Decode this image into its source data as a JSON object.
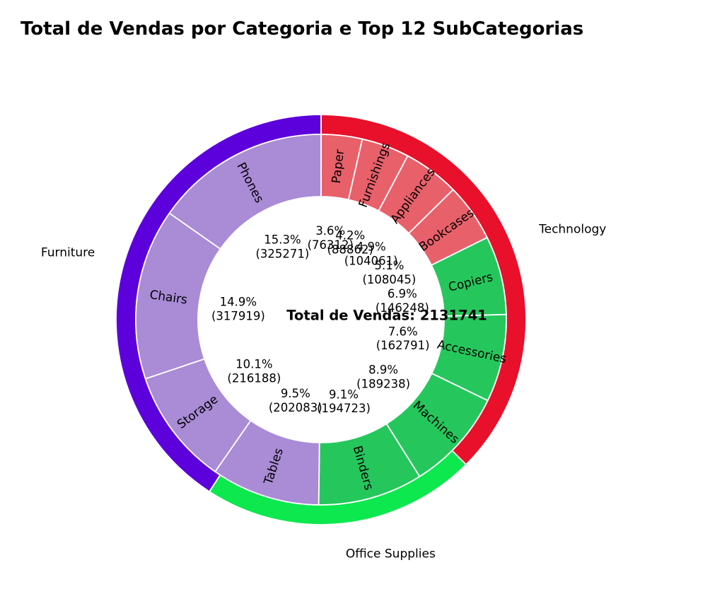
{
  "chart_data": {
    "type": "pie",
    "subtype": "nested-donut",
    "title": "Total de Vendas por Categoria e Top 12 SubCategorias",
    "center_label": "Total de Vendas: 2131741",
    "outer_ring": {
      "categories": [
        {
          "name": "Technology",
          "color": "#e8102a"
        },
        {
          "name": "Office Supplies",
          "color": "#0ce84e"
        },
        {
          "name": "Furniture",
          "color": "#5c00dc"
        }
      ]
    },
    "inner_ring": {
      "slices": [
        {
          "name": "Paper",
          "value": 76312,
          "pct_label": "3.6%",
          "value_label": "(76312)",
          "color": "#e8606a"
        },
        {
          "name": "Furnishings",
          "value": 88862,
          "pct_label": "4.2%",
          "value_label": "(88862)",
          "color": "#e8606a"
        },
        {
          "name": "Appliances",
          "value": 104061,
          "pct_label": "4.9%",
          "value_label": "(104061)",
          "color": "#e8606a"
        },
        {
          "name": "Bookcases",
          "value": 108045,
          "pct_label": "5.1%",
          "value_label": "(108045)",
          "color": "#e8606a"
        },
        {
          "name": "Copiers",
          "value": 146248,
          "pct_label": "6.9%",
          "value_label": "(146248)",
          "color": "#25c75c"
        },
        {
          "name": "Accessories",
          "value": 162791,
          "pct_label": "7.6%",
          "value_label": "(162791)",
          "color": "#25c75c"
        },
        {
          "name": "Machines",
          "value": 189238,
          "pct_label": "8.9%",
          "value_label": "(189238)",
          "color": "#25c75c"
        },
        {
          "name": "Binders",
          "value": 194723,
          "pct_label": "9.1%",
          "value_label": "(194723)",
          "color": "#25c75c"
        },
        {
          "name": "Tables",
          "value": 202083,
          "pct_label": "9.5%",
          "value_label": "(202083)",
          "color": "#a98bd6"
        },
        {
          "name": "Storage",
          "value": 216188,
          "pct_label": "10.1%",
          "value_label": "(216188)",
          "color": "#a98bd6"
        },
        {
          "name": "Chairs",
          "value": 317919,
          "pct_label": "14.9%",
          "value_label": "(317919)",
          "color": "#a98bd6"
        },
        {
          "name": "Phones",
          "value": 325271,
          "pct_label": "15.3%",
          "value_label": "(325271)",
          "color": "#a98bd6"
        }
      ]
    }
  }
}
